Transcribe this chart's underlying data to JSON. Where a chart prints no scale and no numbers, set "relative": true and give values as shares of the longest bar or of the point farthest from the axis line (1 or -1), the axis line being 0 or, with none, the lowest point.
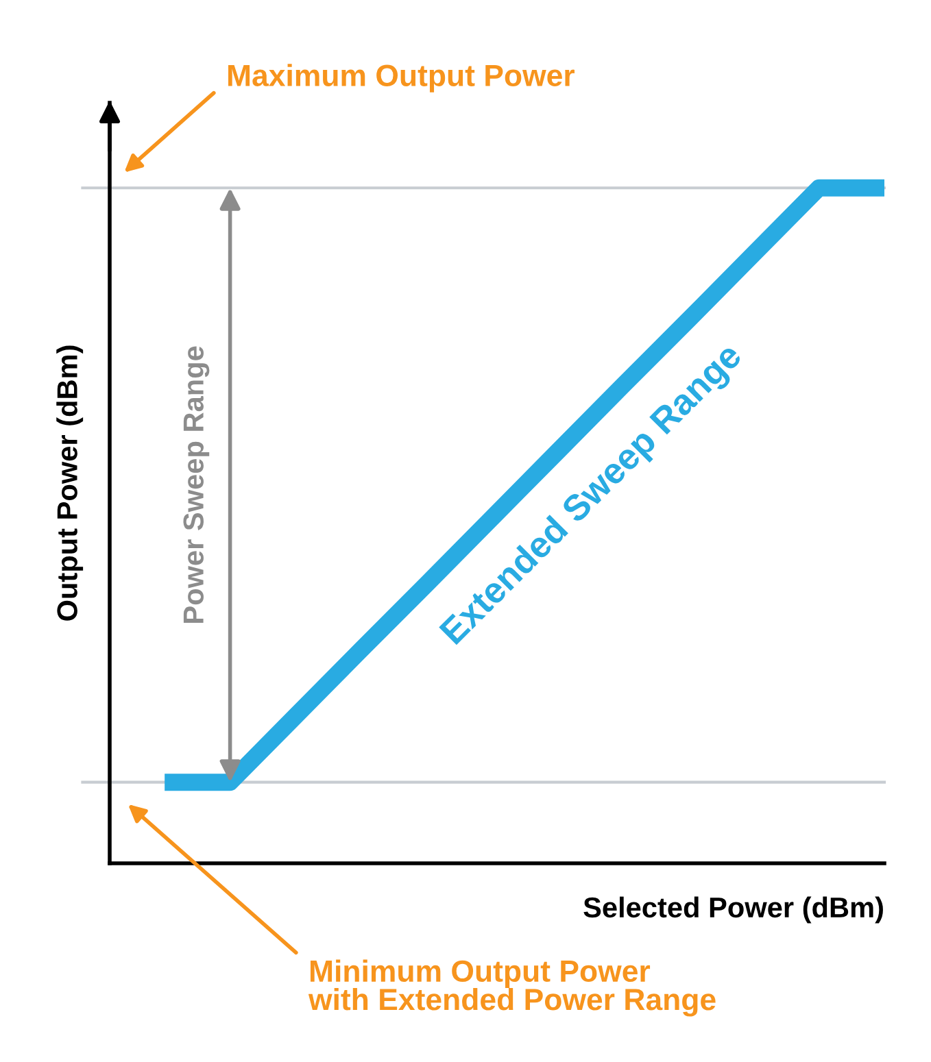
{
  "chart_data": {
    "type": "line",
    "relative": true,
    "xlabel": "Selected Power (dBm)",
    "ylabel": "Output Power (dBm)",
    "categories": [
      null,
      null,
      null,
      null,
      null,
      null,
      null,
      null,
      null,
      null,
      null,
      null
    ],
    "series": [
      {
        "color": "#29abe2",
        "values": [
          0.12,
          0.12,
          0.218,
          0.316,
          0.413,
          0.511,
          0.609,
          0.707,
          0.804,
          0.902,
          1.0,
          1.0
        ]
      }
    ],
    "ref_lines": [
      {
        "axis": "y",
        "value": 1.0,
        "color": "#c8cdd2"
      },
      {
        "axis": "y",
        "value": 0.12,
        "color": "#c8cdd2"
      }
    ],
    "annotations": [
      "Maximum Output Power",
      "Minimum Output Power\nwith Extended Power Range",
      "Power Sweep Range",
      "Extended Sweep Range"
    ]
  }
}
